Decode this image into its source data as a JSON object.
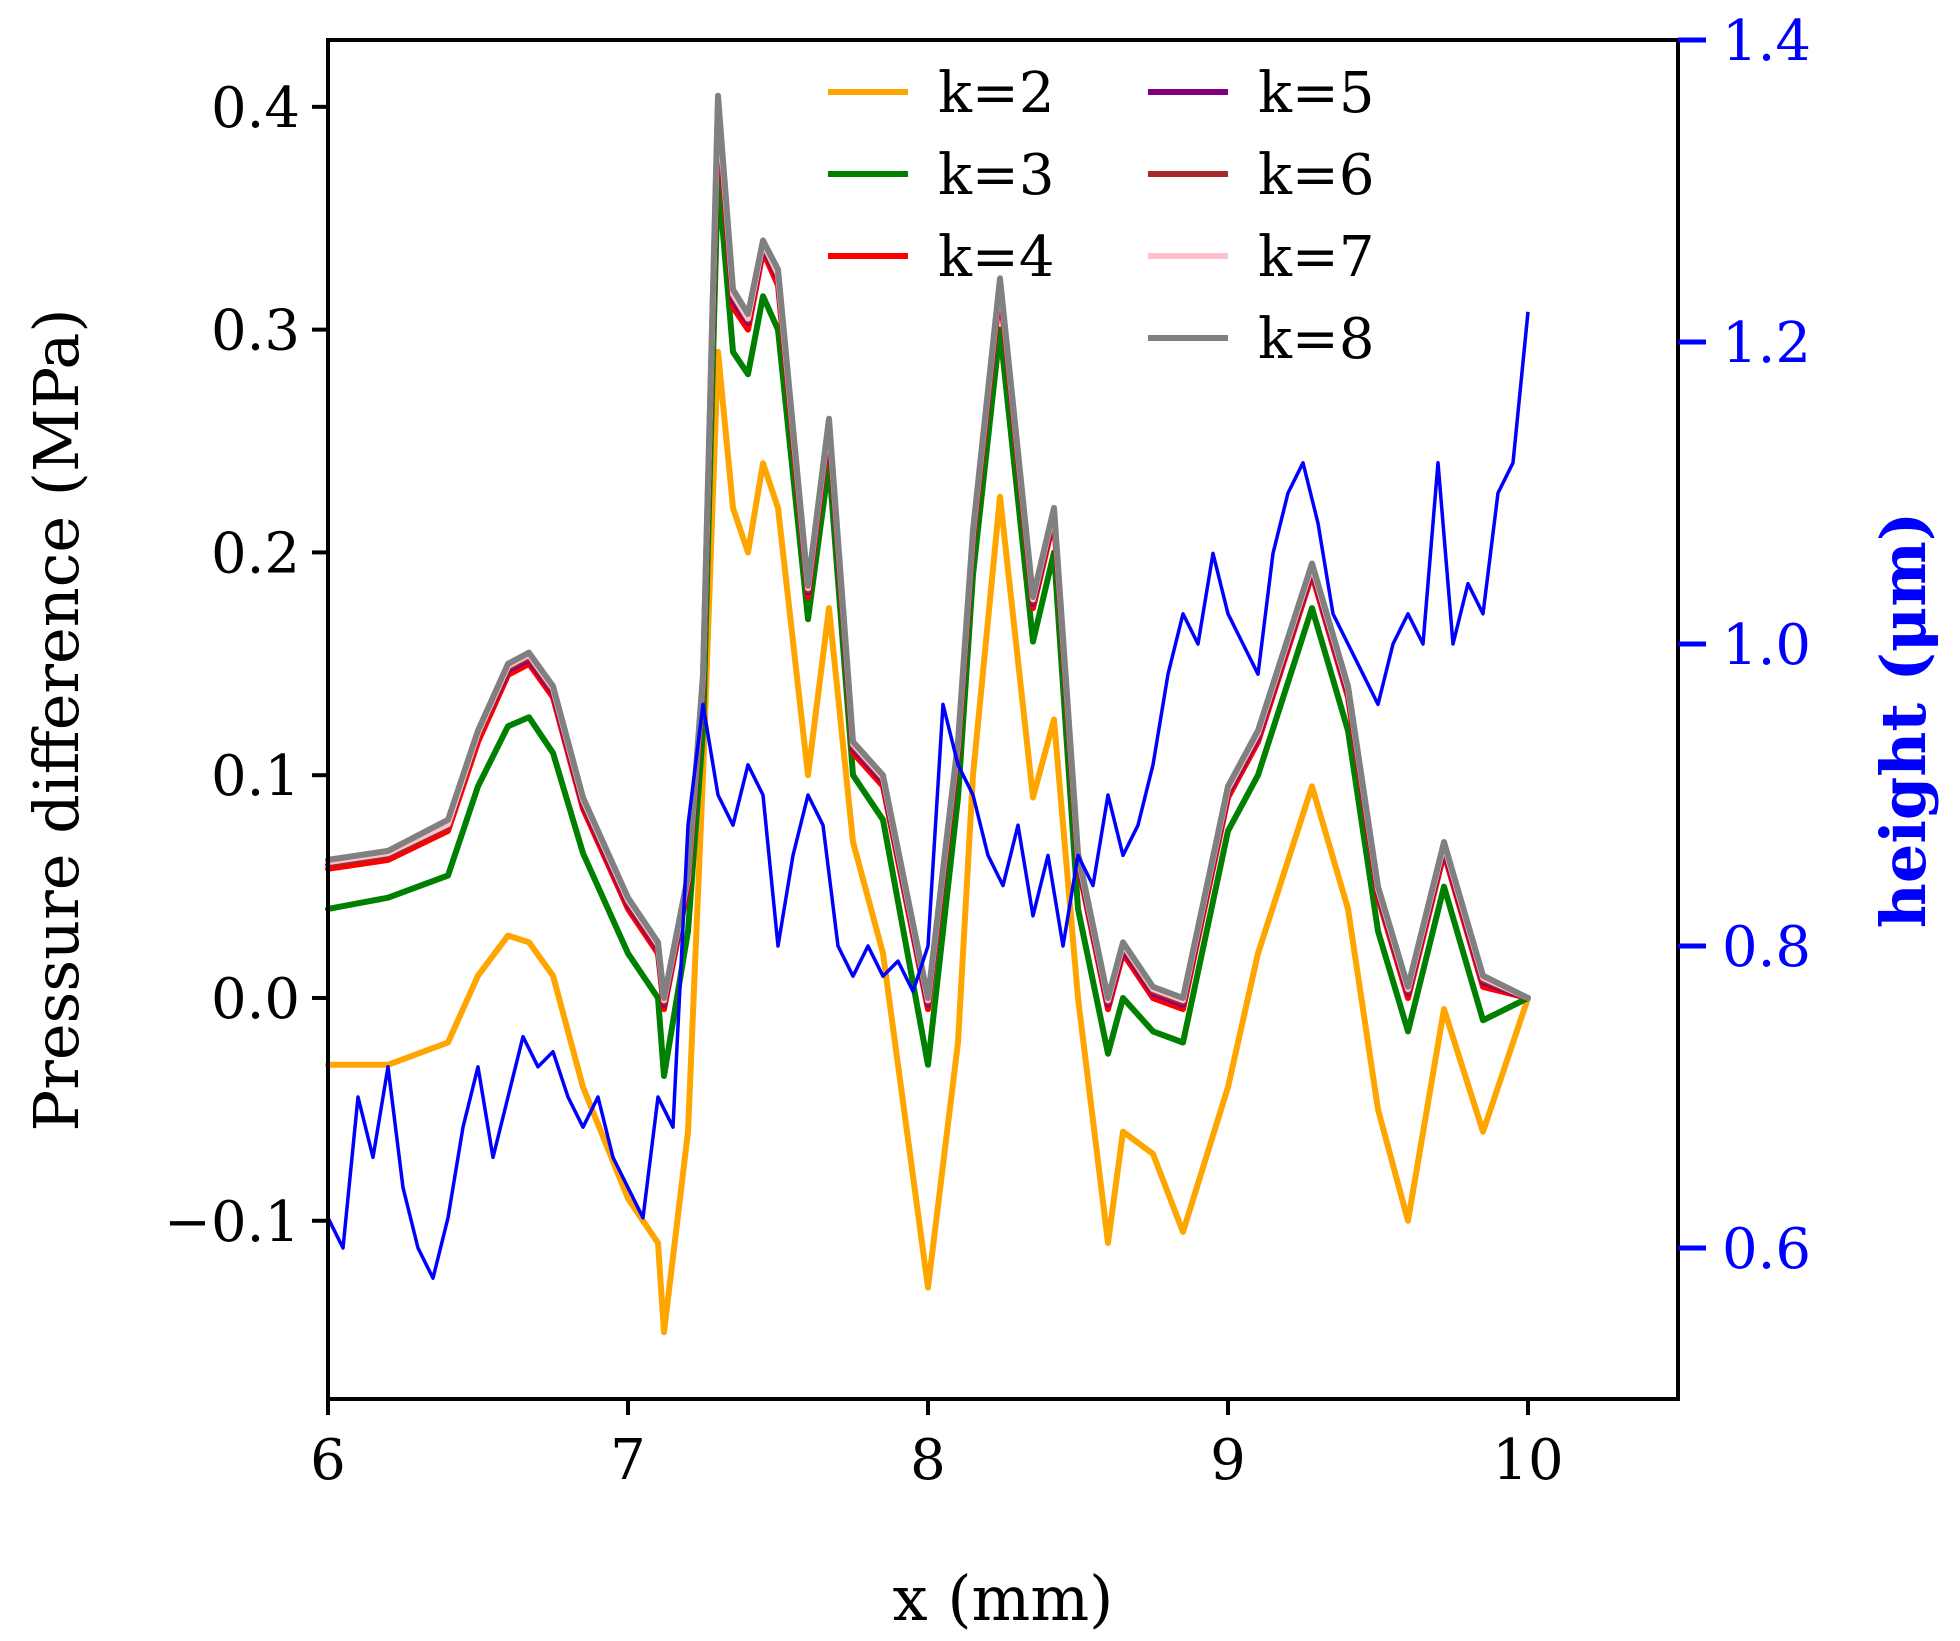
{
  "chart_data": {
    "type": "line",
    "title": "",
    "xlabel": "x (mm)",
    "ylabel": "Pressure difference (MPa)",
    "y2label": "height (μm)",
    "xlim": [
      6,
      10.5
    ],
    "ylim": [
      -0.18,
      0.43
    ],
    "y2lim": [
      0.5,
      1.4
    ],
    "xticks": [
      "6",
      "7",
      "8",
      "9",
      "10"
    ],
    "yticks": [
      "−0.1",
      "0.0",
      "0.1",
      "0.2",
      "0.3",
      "0.4"
    ],
    "y2ticks": [
      "0.6",
      "0.8",
      "1.0",
      "1.2",
      "1.4"
    ],
    "x": [
      6.0,
      6.2,
      6.4,
      6.5,
      6.6,
      6.67,
      6.75,
      6.85,
      7.0,
      7.1,
      7.12,
      7.2,
      7.25,
      7.3,
      7.35,
      7.4,
      7.45,
      7.5,
      7.6,
      7.67,
      7.75,
      7.85,
      8.0,
      8.1,
      8.15,
      8.24,
      8.35,
      8.42,
      8.5,
      8.6,
      8.65,
      8.75,
      8.85,
      9.0,
      9.1,
      9.28,
      9.4,
      9.5,
      9.6,
      9.72,
      9.85,
      10.0
    ],
    "series": [
      {
        "name": "k=2",
        "color": "#ffa500",
        "values": [
          -0.03,
          -0.03,
          -0.02,
          0.01,
          0.028,
          0.025,
          0.01,
          -0.04,
          -0.09,
          -0.11,
          -0.15,
          -0.06,
          0.1,
          0.29,
          0.22,
          0.2,
          0.24,
          0.22,
          0.1,
          0.175,
          0.07,
          0.02,
          -0.13,
          -0.02,
          0.1,
          0.225,
          0.09,
          0.125,
          0.0,
          -0.11,
          -0.06,
          -0.07,
          -0.105,
          -0.04,
          0.02,
          0.095,
          0.04,
          -0.05,
          -0.1,
          -0.005,
          -0.06,
          0.0
        ]
      },
      {
        "name": "k=3",
        "color": "#008000",
        "values": [
          0.04,
          0.045,
          0.055,
          0.095,
          0.122,
          0.126,
          0.11,
          0.065,
          0.02,
          0.0,
          -0.035,
          0.03,
          0.12,
          0.37,
          0.29,
          0.28,
          0.315,
          0.3,
          0.17,
          0.24,
          0.1,
          0.08,
          -0.03,
          0.09,
          0.19,
          0.3,
          0.16,
          0.2,
          0.04,
          -0.025,
          0.0,
          -0.015,
          -0.02,
          0.075,
          0.1,
          0.175,
          0.12,
          0.03,
          -0.015,
          0.05,
          -0.01,
          0.0
        ]
      },
      {
        "name": "k=4",
        "color": "#ff0000",
        "values": [
          0.058,
          0.062,
          0.075,
          0.115,
          0.145,
          0.15,
          0.135,
          0.085,
          0.04,
          0.02,
          -0.005,
          0.05,
          0.14,
          0.395,
          0.31,
          0.3,
          0.335,
          0.32,
          0.18,
          0.255,
          0.11,
          0.095,
          -0.005,
          0.11,
          0.205,
          0.318,
          0.175,
          0.215,
          0.06,
          -0.005,
          0.02,
          0.0,
          -0.005,
          0.09,
          0.115,
          0.19,
          0.135,
          0.045,
          0.0,
          0.065,
          0.005,
          0.0
        ]
      },
      {
        "name": "k=5",
        "color": "#800080",
        "values": [
          0.06,
          0.064,
          0.077,
          0.118,
          0.147,
          0.152,
          0.137,
          0.087,
          0.042,
          0.022,
          -0.003,
          0.052,
          0.142,
          0.398,
          0.313,
          0.303,
          0.337,
          0.323,
          0.182,
          0.257,
          0.112,
          0.097,
          -0.003,
          0.112,
          0.207,
          0.32,
          0.177,
          0.217,
          0.062,
          -0.003,
          0.022,
          0.002,
          -0.003,
          0.092,
          0.117,
          0.192,
          0.137,
          0.047,
          0.002,
          0.067,
          0.007,
          0.0
        ]
      },
      {
        "name": "k=6",
        "color": "#a52a2a",
        "values": [
          0.06,
          0.064,
          0.077,
          0.118,
          0.148,
          0.153,
          0.138,
          0.088,
          0.043,
          0.023,
          -0.002,
          0.053,
          0.143,
          0.4,
          0.315,
          0.304,
          0.338,
          0.324,
          0.183,
          0.258,
          0.113,
          0.098,
          -0.002,
          0.113,
          0.208,
          0.321,
          0.178,
          0.218,
          0.063,
          -0.002,
          0.023,
          0.003,
          -0.002,
          0.093,
          0.118,
          0.193,
          0.138,
          0.048,
          0.003,
          0.068,
          0.008,
          0.0
        ]
      },
      {
        "name": "k=7",
        "color": "#ffc0cb",
        "values": [
          0.061,
          0.065,
          0.078,
          0.119,
          0.149,
          0.154,
          0.139,
          0.089,
          0.044,
          0.024,
          -0.001,
          0.054,
          0.144,
          0.402,
          0.316,
          0.305,
          0.339,
          0.325,
          0.184,
          0.259,
          0.114,
          0.099,
          -0.001,
          0.114,
          0.209,
          0.322,
          0.179,
          0.219,
          0.064,
          -0.001,
          0.024,
          0.004,
          -0.001,
          0.094,
          0.119,
          0.194,
          0.139,
          0.049,
          0.004,
          0.069,
          0.009,
          0.0
        ]
      },
      {
        "name": "k=8",
        "color": "#808080",
        "values": [
          0.062,
          0.066,
          0.08,
          0.12,
          0.15,
          0.155,
          0.14,
          0.09,
          0.045,
          0.025,
          0.0,
          0.055,
          0.145,
          0.405,
          0.318,
          0.307,
          0.34,
          0.327,
          0.185,
          0.26,
          0.115,
          0.1,
          0.0,
          0.115,
          0.21,
          0.323,
          0.18,
          0.22,
          0.065,
          0.0,
          0.025,
          0.005,
          0.0,
          0.095,
          0.12,
          0.195,
          0.14,
          0.05,
          0.005,
          0.07,
          0.01,
          0.0
        ]
      }
    ],
    "height_series": {
      "name": "height",
      "axis": "right",
      "color": "#0000ff",
      "x": [
        6.0,
        6.05,
        6.1,
        6.15,
        6.2,
        6.25,
        6.3,
        6.35,
        6.4,
        6.45,
        6.5,
        6.55,
        6.6,
        6.65,
        6.7,
        6.75,
        6.8,
        6.85,
        6.9,
        6.95,
        7.0,
        7.05,
        7.1,
        7.15,
        7.2,
        7.25,
        7.3,
        7.35,
        7.4,
        7.45,
        7.5,
        7.55,
        7.6,
        7.65,
        7.7,
        7.75,
        7.8,
        7.85,
        7.9,
        7.95,
        8.0,
        8.05,
        8.1,
        8.15,
        8.2,
        8.25,
        8.3,
        8.35,
        8.4,
        8.45,
        8.5,
        8.55,
        8.6,
        8.65,
        8.7,
        8.75,
        8.8,
        8.85,
        8.9,
        8.95,
        9.0,
        9.05,
        9.1,
        9.15,
        9.2,
        9.25,
        9.3,
        9.35,
        9.4,
        9.45,
        9.5,
        9.55,
        9.6,
        9.65,
        9.7,
        9.75,
        9.8,
        9.85,
        9.9,
        9.95,
        10.0
      ],
      "values": [
        0.62,
        0.6,
        0.7,
        0.66,
        0.72,
        0.64,
        0.6,
        0.58,
        0.62,
        0.68,
        0.72,
        0.66,
        0.7,
        0.74,
        0.72,
        0.73,
        0.7,
        0.68,
        0.7,
        0.66,
        0.64,
        0.62,
        0.7,
        0.68,
        0.88,
        0.96,
        0.9,
        0.88,
        0.92,
        0.9,
        0.8,
        0.86,
        0.9,
        0.88,
        0.8,
        0.78,
        0.8,
        0.78,
        0.79,
        0.77,
        0.8,
        0.96,
        0.92,
        0.9,
        0.86,
        0.84,
        0.88,
        0.82,
        0.86,
        0.8,
        0.86,
        0.84,
        0.9,
        0.86,
        0.88,
        0.92,
        0.98,
        1.02,
        1.0,
        1.06,
        1.02,
        1.0,
        0.98,
        1.06,
        1.1,
        1.12,
        1.08,
        1.02,
        1.0,
        0.98,
        0.96,
        1.0,
        1.02,
        1.0,
        1.12,
        1.0,
        1.04,
        1.02,
        1.1,
        1.12,
        1.22
      ]
    },
    "legend_position": "top-center"
  }
}
